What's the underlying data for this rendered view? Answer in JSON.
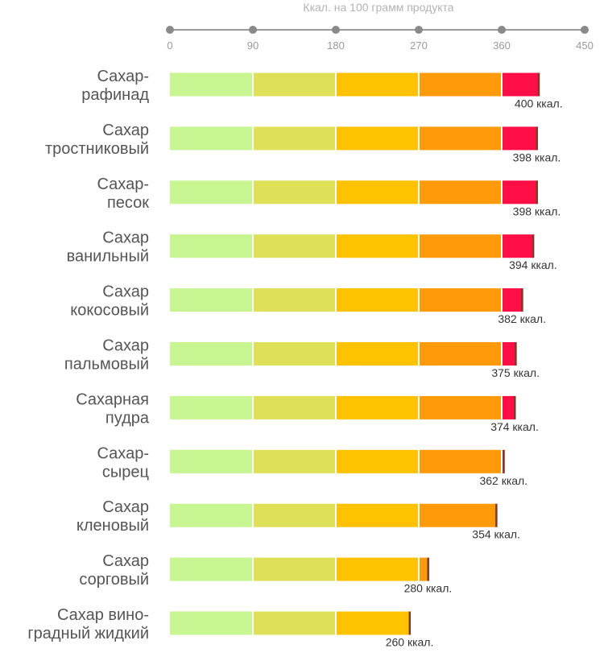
{
  "chart_data": {
    "type": "bar",
    "orientation": "horizontal",
    "xlabel": "Ккал. на 100 грамм продукта",
    "xlim": [
      0,
      450
    ],
    "ticks": [
      0,
      90,
      180,
      270,
      360,
      450
    ],
    "unit": "ккал.",
    "band_colors": [
      "#c6f592",
      "#dee057",
      "#ffc200",
      "#ff9a0a",
      "#ff0f45"
    ],
    "end_marker_color": "#7a3b2a",
    "categories": [
      [
        "Сахар-",
        "рафинад"
      ],
      [
        "Сахар",
        "тростниковый"
      ],
      [
        "Сахар-",
        "песок"
      ],
      [
        "Сахар",
        "ванильный"
      ],
      [
        "Сахар",
        "кокосовый"
      ],
      [
        "Сахар",
        "пальмовый"
      ],
      [
        "Сахарная",
        "пудра"
      ],
      [
        "Сахар-",
        "сырец"
      ],
      [
        "Сахар",
        "кленовый"
      ],
      [
        "Сахар",
        "сорговый"
      ],
      [
        "Сахар вино-",
        "градный жидкий"
      ]
    ],
    "values": [
      400,
      398,
      398,
      394,
      382,
      375,
      374,
      362,
      354,
      280,
      260
    ],
    "value_labels": [
      "400 ккал.",
      "398 ккал.",
      "398 ккал.",
      "394 ккал.",
      "382 ккал.",
      "375 ккал.",
      "374 ккал.",
      "362 ккал.",
      "354 ккал.",
      "280 ккал.",
      "260 ккал."
    ]
  }
}
